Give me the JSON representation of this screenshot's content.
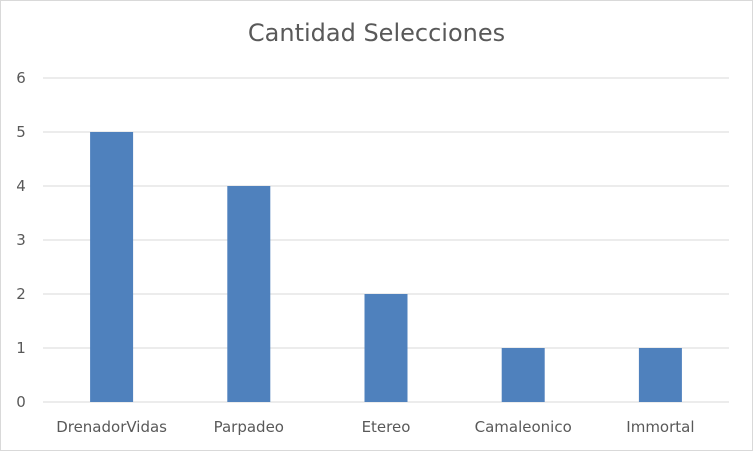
{
  "chart_data": {
    "type": "bar",
    "title": "Cantidad Selecciones",
    "categories": [
      "DrenadorVidas",
      "Parpadeo",
      "Etereo",
      "Camaleonico",
      "Immortal"
    ],
    "values": [
      5,
      4,
      2,
      1,
      1
    ],
    "y_ticks": [
      "0",
      "1",
      "2",
      "3",
      "4",
      "5",
      "6"
    ],
    "xlabel": "",
    "ylabel": "",
    "ylim": [
      0,
      6
    ],
    "grid": true,
    "legend": "none",
    "bar_color": "#4f81bd",
    "grid_color": "#d9d9d9"
  }
}
